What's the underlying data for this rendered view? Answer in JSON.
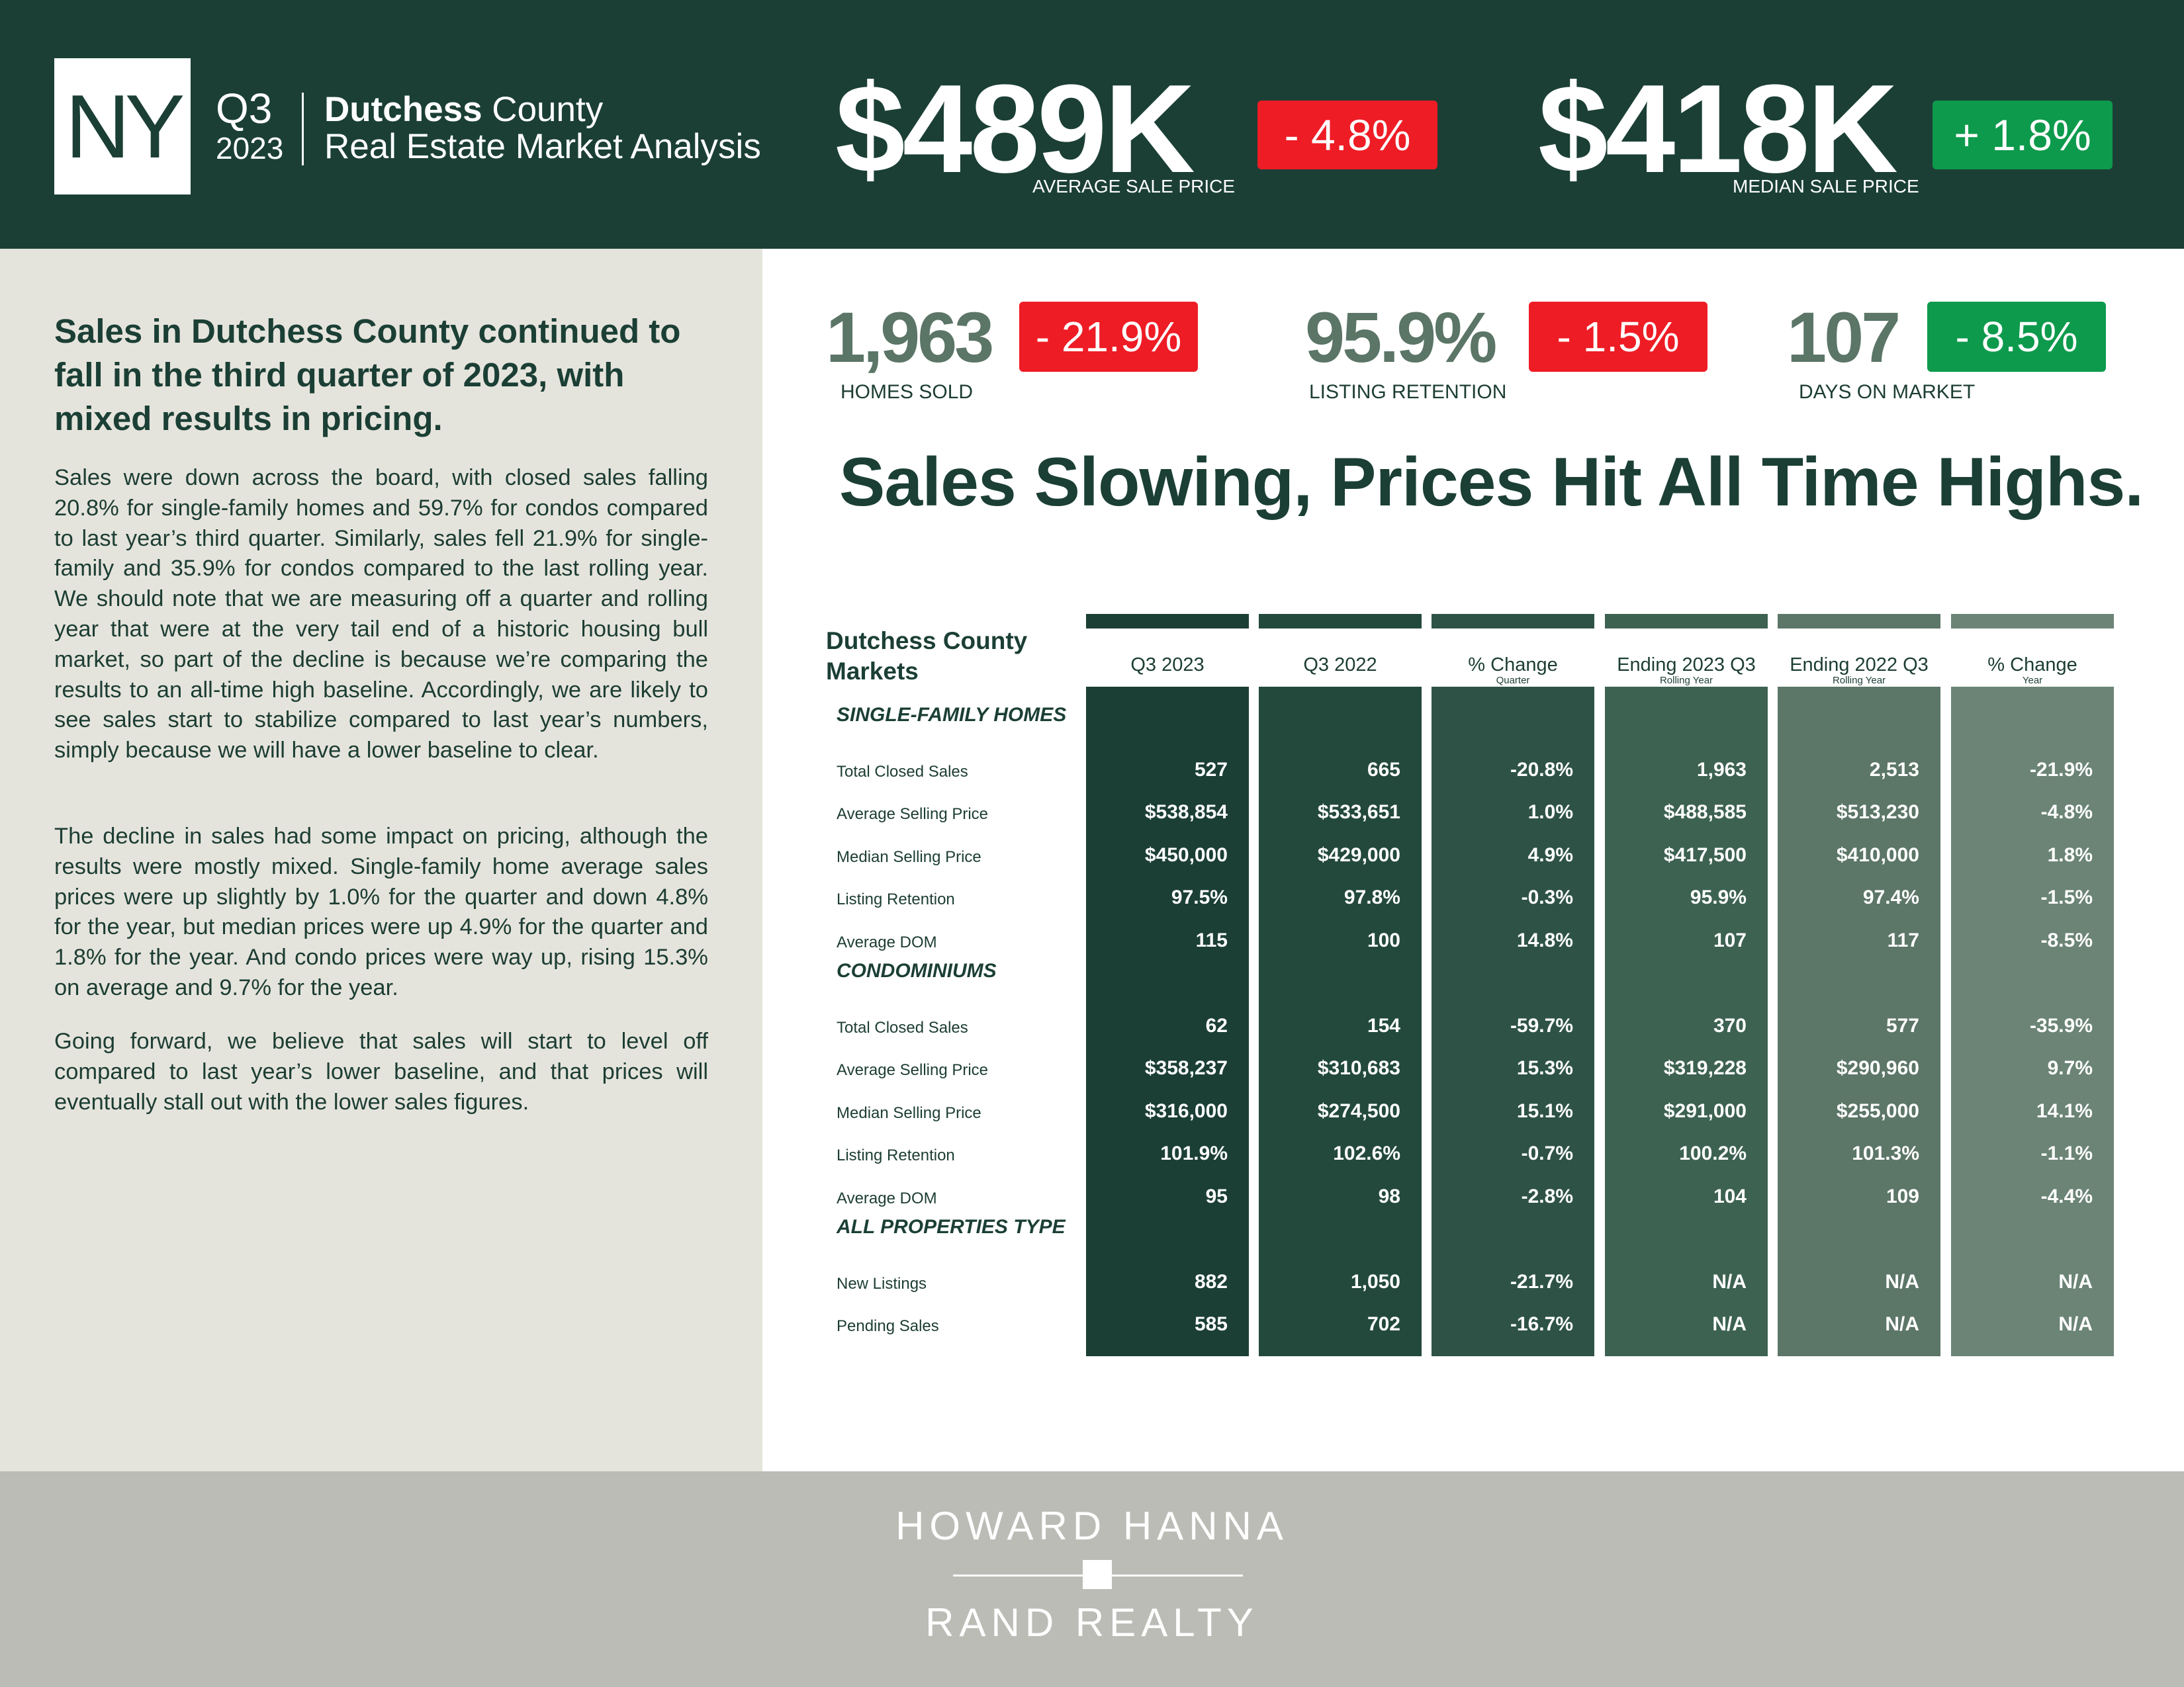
{
  "header": {
    "state_abbr": "NY",
    "quarter": "Q3",
    "year": "2023",
    "county_bold": "Dutchess",
    "county_rest": " County",
    "subtitle": "Real Estate Market Analysis",
    "avg_sale_price": {
      "value": "$489K",
      "change": "- 4.8%",
      "label": "AVERAGE SALE PRICE"
    },
    "median_sale_price": {
      "value": "$418K",
      "change": "+ 1.8%",
      "label": "MEDIAN SALE PRICE"
    }
  },
  "stats": {
    "homes_sold": {
      "value": "1,963",
      "change": "- 21.9%",
      "label": "HOMES SOLD"
    },
    "listing_retention": {
      "value": "95.9%",
      "change": "- 1.5%",
      "label": "LISTING RETENTION"
    },
    "days_on_market": {
      "value": "107",
      "change": "- 8.5%",
      "label": "DAYS ON MARKET"
    }
  },
  "headline": "Sales Slowing, Prices Hit All Time Highs.",
  "left": {
    "lead": "Sales in Dutchess County continued to fall in the third quarter of 2023, with mixed results in pricing.",
    "p1": "Sales were down across the board, with closed sales falling 20.8% for single-family homes and 59.7% for condos compared to last year’s third quarter. Similarly, sales fell 21.9% for single-family and 35.9% for condos compared to the last rolling year. We should note that we are measuring off a quarter and rolling year that were at the very tail end of a historic housing bull market, so part of the decline is because we’re comparing the results to an all-time high baseline. Accordingly, we are likely to see sales start to stabilize compared to last year’s numbers, simply because we will have a lower baseline to clear.",
    "p2": "The decline in sales had some impact on pricing, although the results were mostly mixed. Single-family home average sales prices were up slightly by 1.0% for the quarter and down 4.8% for the year, but median prices were up 4.9% for the quarter and 1.8% for the year. And condo prices were way up, rising 15.3% on average and 9.7% for the year.",
    "p3": "Going forward, we believe that sales will start to level off compared to last year’s lower baseline, and that prices will eventually stall out with the lower sales figures."
  },
  "table": {
    "title_line1": "Dutchess County",
    "title_line2": "Markets",
    "columns": [
      {
        "label": "Q3 2023",
        "sub": ""
      },
      {
        "label": "Q3 2022",
        "sub": ""
      },
      {
        "label": "% Change",
        "sub": "Quarter"
      },
      {
        "label": "Ending 2023 Q3",
        "sub": "Rolling Year"
      },
      {
        "label": "Ending 2022 Q3",
        "sub": "Rolling Year"
      },
      {
        "label": "% Change",
        "sub": "Year"
      }
    ],
    "sections": [
      {
        "name": "SINGLE-FAMILY HOMES",
        "rows": [
          {
            "label": "Total Closed Sales",
            "values": [
              "527",
              "665",
              "-20.8%",
              "1,963",
              "2,513",
              "-21.9%"
            ]
          },
          {
            "label": "Average Selling Price",
            "values": [
              "$538,854",
              "$533,651",
              "1.0%",
              "$488,585",
              "$513,230",
              "-4.8%"
            ]
          },
          {
            "label": "Median Selling Price",
            "values": [
              "$450,000",
              "$429,000",
              "4.9%",
              "$417,500",
              "$410,000",
              "1.8%"
            ]
          },
          {
            "label": "Listing Retention",
            "values": [
              "97.5%",
              "97.8%",
              "-0.3%",
              "95.9%",
              "97.4%",
              "-1.5%"
            ]
          },
          {
            "label": "Average DOM",
            "values": [
              "115",
              "100",
              "14.8%",
              "107",
              "117",
              "-8.5%"
            ]
          }
        ]
      },
      {
        "name": "CONDOMINIUMS",
        "rows": [
          {
            "label": "Total Closed Sales",
            "values": [
              "62",
              "154",
              "-59.7%",
              "370",
              "577",
              "-35.9%"
            ]
          },
          {
            "label": "Average Selling Price",
            "values": [
              "$358,237",
              "$310,683",
              "15.3%",
              "$319,228",
              "$290,960",
              "9.7%"
            ]
          },
          {
            "label": "Median Selling Price",
            "values": [
              "$316,000",
              "$274,500",
              "15.1%",
              "$291,000",
              "$255,000",
              "14.1%"
            ]
          },
          {
            "label": "Listing Retention",
            "values": [
              "101.9%",
              "102.6%",
              "-0.7%",
              "100.2%",
              "101.3%",
              "-1.1%"
            ]
          },
          {
            "label": "Average DOM",
            "values": [
              "95",
              "98",
              "-2.8%",
              "104",
              "109",
              "-4.4%"
            ]
          }
        ]
      },
      {
        "name": "ALL PROPERTIES TYPE",
        "rows": [
          {
            "label": "New Listings",
            "values": [
              "882",
              "1,050",
              "-21.7%",
              "N/A",
              "N/A",
              "N/A"
            ]
          },
          {
            "label": "Pending Sales",
            "values": [
              "585",
              "702",
              "-16.7%",
              "N/A",
              "N/A",
              "N/A"
            ]
          }
        ]
      }
    ]
  },
  "footer": {
    "brand_line1": "HOWARD HANNA",
    "brand_line2": "RAND REALTY"
  },
  "colors": {
    "header_bg": "#1b3f35",
    "negative": "#ee1c25",
    "positive": "#0d9a4c",
    "column_shades": [
      "#1b3f35",
      "#23493d",
      "#2e5346",
      "#3d6252",
      "#5c7668",
      "#6b8476"
    ]
  }
}
